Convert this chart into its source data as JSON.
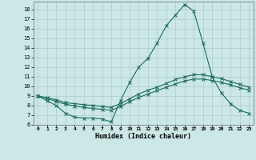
{
  "xlabel": "Humidex (Indice chaleur)",
  "background_color": "#cce8e6",
  "grid_color": "#aaccca",
  "line_color": "#1a6b5a",
  "xlim": [
    -0.5,
    23.5
  ],
  "ylim": [
    6,
    18.8
  ],
  "yticks": [
    6,
    7,
    8,
    9,
    10,
    11,
    12,
    13,
    14,
    15,
    16,
    17,
    18
  ],
  "xticks": [
    0,
    1,
    2,
    3,
    4,
    5,
    6,
    7,
    8,
    9,
    10,
    11,
    12,
    13,
    14,
    15,
    16,
    17,
    18,
    19,
    20,
    21,
    22,
    23
  ],
  "line1_x": [
    0,
    1,
    2,
    3,
    4,
    5,
    6,
    7,
    8,
    9,
    10,
    11,
    12,
    13,
    14,
    15,
    16,
    17,
    18,
    19,
    20,
    21,
    22,
    23
  ],
  "line1_y": [
    9.0,
    8.5,
    8.0,
    7.2,
    6.8,
    6.7,
    6.7,
    6.6,
    6.3,
    8.5,
    10.4,
    12.0,
    12.9,
    14.5,
    16.3,
    17.4,
    18.5,
    17.8,
    14.5,
    11.0,
    9.3,
    8.2,
    7.5,
    7.2
  ],
  "line2_x": [
    0,
    1,
    2,
    3,
    4,
    5,
    6,
    7,
    8,
    9,
    10,
    11,
    12,
    13,
    14,
    15,
    16,
    17,
    18,
    19,
    20,
    21,
    22,
    23
  ],
  "line2_y": [
    9.0,
    8.8,
    8.6,
    8.3,
    8.2,
    8.1,
    8.0,
    7.9,
    7.8,
    8.2,
    8.7,
    9.2,
    9.6,
    9.9,
    10.3,
    10.7,
    11.0,
    11.2,
    11.2,
    11.0,
    10.8,
    10.5,
    10.2,
    9.9
  ],
  "line3_x": [
    0,
    1,
    2,
    3,
    4,
    5,
    6,
    7,
    8,
    9,
    10,
    11,
    12,
    13,
    14,
    15,
    16,
    17,
    18,
    19,
    20,
    21,
    22,
    23
  ],
  "line3_y": [
    9.0,
    8.75,
    8.4,
    8.15,
    7.95,
    7.8,
    7.7,
    7.6,
    7.5,
    7.9,
    8.4,
    8.85,
    9.2,
    9.55,
    9.9,
    10.25,
    10.55,
    10.75,
    10.75,
    10.6,
    10.4,
    10.15,
    9.85,
    9.6
  ]
}
